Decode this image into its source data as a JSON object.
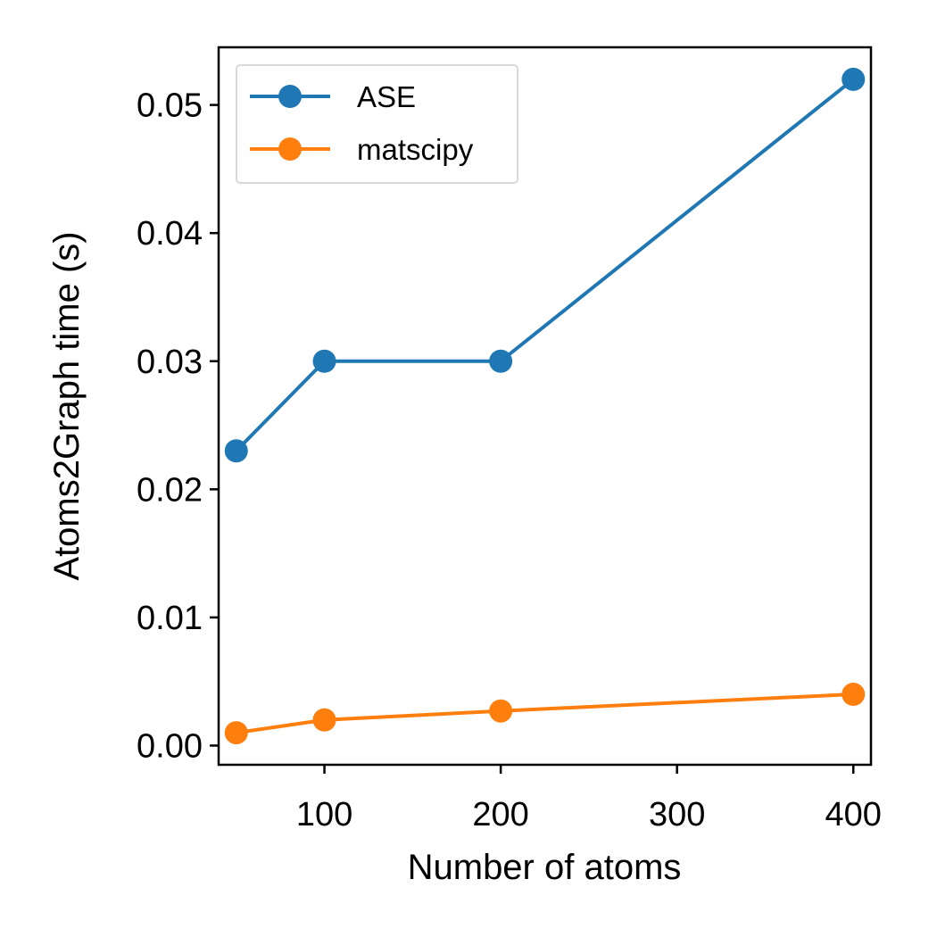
{
  "chart_data": {
    "type": "line",
    "title": "",
    "xlabel": "Number of atoms",
    "ylabel": "Atoms2Graph time (s)",
    "xlim": [
      40,
      410
    ],
    "ylim": [
      -0.0015,
      0.0545
    ],
    "x_ticks": [
      100,
      200,
      300,
      400
    ],
    "y_ticks": [
      0.0,
      0.01,
      0.02,
      0.03,
      0.04,
      0.05
    ],
    "x_tick_labels": [
      "100",
      "200",
      "300",
      "400"
    ],
    "y_tick_labels": [
      "0.00",
      "0.01",
      "0.02",
      "0.03",
      "0.04",
      "0.05"
    ],
    "grid": false,
    "legend": "top-left",
    "x": [
      50,
      100,
      200,
      400
    ],
    "series": [
      {
        "name": "ASE",
        "color": "#1f77b4",
        "values": [
          0.023,
          0.03,
          0.03,
          0.052
        ]
      },
      {
        "name": "matscipy",
        "color": "#ff7f0e",
        "values": [
          0.001,
          0.002,
          0.0027,
          0.004
        ]
      }
    ]
  }
}
